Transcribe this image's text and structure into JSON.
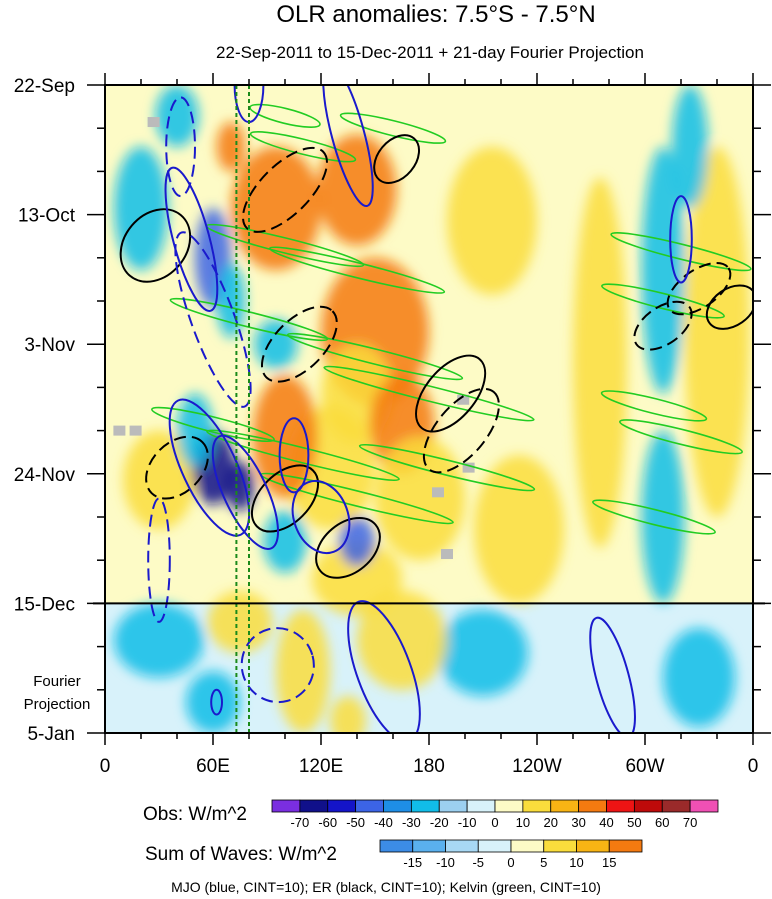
{
  "chart_data": {
    "type": "heatmap",
    "title": "OLR anomalies: 7.5°S - 7.5°N",
    "subtitle": "22-Sep-2011 to 15-Dec-2011 + 21-day Fourier Projection",
    "x_axis": {
      "ticks": [
        {
          "lon": 0,
          "label": "0"
        },
        {
          "lon": 60,
          "label": "60E"
        },
        {
          "lon": 120,
          "label": "120E"
        },
        {
          "lon": 180,
          "label": "180"
        },
        {
          "lon": 240,
          "label": "120W"
        },
        {
          "lon": 300,
          "label": "60W"
        },
        {
          "lon": 360,
          "label": "0"
        }
      ],
      "range": [
        0,
        360
      ]
    },
    "y_axis": {
      "ticks": [
        {
          "day": 0,
          "label": "22-Sep"
        },
        {
          "day": 21,
          "label": "13-Oct"
        },
        {
          "day": 42,
          "label": "3-Nov"
        },
        {
          "day": 63,
          "label": "24-Nov"
        },
        {
          "day": 84,
          "label": "15-Dec"
        },
        {
          "day": 105,
          "label": "5-Jan"
        }
      ],
      "range": [
        0,
        105
      ],
      "reversed": true
    },
    "observation_end_day": 84,
    "projection_label": [
      "Fourier",
      "Projection"
    ],
    "reference_lons": [
      73,
      80
    ],
    "obs_colorbar": {
      "label": "Obs: W/m^2",
      "levels": [
        -70,
        -60,
        -50,
        -40,
        -30,
        -20,
        -10,
        0,
        10,
        20,
        30,
        40,
        50,
        60,
        70
      ],
      "colors": [
        "#7a2ee0",
        "#10108a",
        "#1414c8",
        "#3c64e6",
        "#1e8ee6",
        "#11bde8",
        "#9cd0f0",
        "#d8f2fa",
        "#fdfbc6",
        "#fadd3c",
        "#f8b414",
        "#f47a10",
        "#ee1414",
        "#be0a0a",
        "#9a2a2a",
        "#f050b4"
      ]
    },
    "wave_colorbar": {
      "label": "Sum of Waves: W/m^2",
      "levels": [
        -15,
        -10,
        -5,
        0,
        5,
        10,
        15
      ],
      "colors": [
        "#3c8ce6",
        "#5ab0ee",
        "#a8d8f4",
        "#d8f2fa",
        "#fdfbc6",
        "#fadd3c",
        "#f8b414",
        "#f47a10"
      ]
    },
    "caption": "MJO (blue, CINT=10); ER (black, CINT=10); Kelvin (green, CINT=10)",
    "field_blobs": [
      {
        "lon": 70,
        "day": 10,
        "rlon": 8,
        "rday": 4,
        "v": 2
      },
      {
        "lon": 95,
        "day": 20,
        "rlon": 25,
        "rday": 10,
        "v": 2
      },
      {
        "lon": 140,
        "day": 17,
        "rlon": 22,
        "rday": 9,
        "v": 2
      },
      {
        "lon": 150,
        "day": 40,
        "rlon": 30,
        "rday": 12,
        "v": 2
      },
      {
        "lon": 140,
        "day": 50,
        "rlon": 20,
        "rday": 8,
        "v": 1
      },
      {
        "lon": 165,
        "day": 55,
        "rlon": 18,
        "rday": 8,
        "v": 2
      },
      {
        "lon": 125,
        "day": 62,
        "rlon": 25,
        "rday": 10,
        "v": 1
      },
      {
        "lon": 100,
        "day": 57,
        "rlon": 18,
        "rday": 10,
        "v": 2
      },
      {
        "lon": 175,
        "day": 67,
        "rlon": 25,
        "rday": 10,
        "v": 1
      },
      {
        "lon": 30,
        "day": 64,
        "rlon": 20,
        "rday": 8,
        "v": 1
      },
      {
        "lon": 140,
        "day": 80,
        "rlon": 25,
        "rday": 6,
        "v": 1
      },
      {
        "lon": 215,
        "day": 22,
        "rlon": 25,
        "rday": 12,
        "v": 1
      },
      {
        "lon": 230,
        "day": 72,
        "rlon": 25,
        "rday": 12,
        "v": 1
      },
      {
        "lon": 275,
        "day": 45,
        "rlon": 15,
        "rday": 30,
        "v": 1
      },
      {
        "lon": 340,
        "day": 40,
        "rlon": 18,
        "rday": 30,
        "v": 1
      },
      {
        "lon": 60,
        "day": 28,
        "rlon": 10,
        "rday": 8,
        "v": -2
      },
      {
        "lon": 70,
        "day": 35,
        "rlon": 8,
        "rday": 6,
        "v": -1
      },
      {
        "lon": 60,
        "day": 62,
        "rlon": 12,
        "rday": 6,
        "v": -3
      },
      {
        "lon": 75,
        "day": 65,
        "rlon": 8,
        "rday": 4,
        "v": -3
      },
      {
        "lon": 50,
        "day": 56,
        "rlon": 10,
        "rday": 6,
        "v": -1
      },
      {
        "lon": 95,
        "day": 42,
        "rlon": 12,
        "rday": 4,
        "v": -1
      },
      {
        "lon": 140,
        "day": 74,
        "rlon": 10,
        "rday": 4,
        "v": -2
      },
      {
        "lon": 100,
        "day": 74,
        "rlon": 12,
        "rday": 5,
        "v": -1
      },
      {
        "lon": 20,
        "day": 20,
        "rlon": 15,
        "rday": 10,
        "v": -1
      },
      {
        "lon": 40,
        "day": 5,
        "rlon": 12,
        "rday": 5,
        "v": -1
      },
      {
        "lon": 310,
        "day": 30,
        "rlon": 12,
        "rday": 20,
        "v": -1
      },
      {
        "lon": 325,
        "day": 10,
        "rlon": 10,
        "rday": 10,
        "v": -1
      },
      {
        "lon": 310,
        "day": 70,
        "rlon": 12,
        "rday": 14,
        "v": -1
      },
      {
        "lon": 30,
        "day": 90,
        "rlon": 25,
        "rday": 6,
        "v": -1
      },
      {
        "lon": 60,
        "day": 100,
        "rlon": 15,
        "rday": 5,
        "v": -1
      },
      {
        "lon": 210,
        "day": 92,
        "rlon": 25,
        "rday": 7,
        "v": -1
      },
      {
        "lon": 330,
        "day": 96,
        "rlon": 20,
        "rday": 8,
        "v": -1
      },
      {
        "lon": 75,
        "day": 87,
        "rlon": 18,
        "rday": 5,
        "v": 1
      },
      {
        "lon": 110,
        "day": 95,
        "rlon": 15,
        "rday": 10,
        "v": 1
      },
      {
        "lon": 165,
        "day": 90,
        "rlon": 25,
        "rday": 8,
        "v": 1
      },
      {
        "lon": 135,
        "day": 103,
        "rlon": 10,
        "rday": 4,
        "v": 1
      }
    ],
    "mjo_contours": [
      {
        "lon": 48,
        "day": 25,
        "rlon": 10,
        "rday": 12,
        "rot": -15,
        "dash": false
      },
      {
        "lon": 60,
        "day": 38,
        "rlon": 12,
        "rday": 15,
        "rot": -20,
        "dash": true
      },
      {
        "lon": 58,
        "day": 62,
        "rlon": 15,
        "rday": 12,
        "rot": -25,
        "dash": false
      },
      {
        "lon": 78,
        "day": 66,
        "rlon": 12,
        "rday": 10,
        "rot": -25,
        "dash": false
      },
      {
        "lon": 120,
        "day": 70,
        "rlon": 15,
        "rday": 6,
        "rot": -20,
        "dash": false
      },
      {
        "lon": 135,
        "day": 8,
        "rlon": 9,
        "rday": 12,
        "rot": -15,
        "dash": false
      },
      {
        "lon": 80,
        "day": 0,
        "rlon": 8,
        "rday": 6,
        "rot": 0,
        "dash": false
      },
      {
        "lon": 42,
        "day": 10,
        "rlon": 8,
        "rday": 8,
        "rot": 0,
        "dash": true
      },
      {
        "lon": 155,
        "day": 95,
        "rlon": 15,
        "rday": 12,
        "rot": -20,
        "dash": false
      },
      {
        "lon": 282,
        "day": 96,
        "rlon": 9,
        "rday": 10,
        "rot": -15,
        "dash": false
      },
      {
        "lon": 320,
        "day": 25,
        "rlon": 6,
        "rday": 7,
        "rot": 0,
        "dash": false
      },
      {
        "lon": 30,
        "day": 77,
        "rlon": 6,
        "rday": 10,
        "rot": 0,
        "dash": true
      },
      {
        "lon": 96,
        "day": 94,
        "rlon": 20,
        "rday": 6,
        "rot": -15,
        "dash": true
      },
      {
        "lon": 62,
        "day": 100,
        "rlon": 3,
        "rday": 2,
        "rot": 0,
        "dash": false
      },
      {
        "lon": 105,
        "day": 60,
        "rlon": 8,
        "rday": 6,
        "rot": 0,
        "dash": false
      }
    ],
    "er_contours": [
      {
        "lon": 28,
        "day": 26,
        "rlon": 22,
        "rday": 5,
        "rot": -50,
        "dash": false
      },
      {
        "lon": 100,
        "day": 17,
        "rlon": 30,
        "rday": 4,
        "rot": -45,
        "dash": true
      },
      {
        "lon": 108,
        "day": 42,
        "rlon": 26,
        "rday": 4,
        "rot": -45,
        "dash": true
      },
      {
        "lon": 192,
        "day": 50,
        "rlon": 25,
        "rday": 4,
        "rot": -50,
        "dash": false
      },
      {
        "lon": 198,
        "day": 56,
        "rlon": 28,
        "rday": 4,
        "rot": -50,
        "dash": true
      },
      {
        "lon": 40,
        "day": 62,
        "rlon": 20,
        "rday": 4,
        "rot": -45,
        "dash": true
      },
      {
        "lon": 100,
        "day": 67,
        "rlon": 22,
        "rday": 4,
        "rot": -45,
        "dash": false
      },
      {
        "lon": 135,
        "day": 75,
        "rlon": 20,
        "rday": 4,
        "rot": -40,
        "dash": false
      },
      {
        "lon": 162,
        "day": 12,
        "rlon": 15,
        "rday": 3,
        "rot": -50,
        "dash": false
      },
      {
        "lon": 330,
        "day": 33,
        "rlon": 20,
        "rday": 3,
        "rot": -35,
        "dash": true
      },
      {
        "lon": 348,
        "day": 36,
        "rlon": 15,
        "rday": 3,
        "rot": -35,
        "dash": false
      },
      {
        "lon": 310,
        "day": 39,
        "rlon": 18,
        "rday": 3,
        "rot": -35,
        "dash": true
      }
    ],
    "kelvin_contours": [
      {
        "lon": 110,
        "day": 10,
        "len": 60
      },
      {
        "lon": 160,
        "day": 7,
        "len": 60
      },
      {
        "lon": 100,
        "day": 26,
        "len": 90
      },
      {
        "lon": 140,
        "day": 30,
        "len": 100
      },
      {
        "lon": 80,
        "day": 38,
        "len": 90
      },
      {
        "lon": 150,
        "day": 44,
        "len": 100
      },
      {
        "lon": 180,
        "day": 50,
        "len": 120
      },
      {
        "lon": 110,
        "day": 60,
        "len": 110
      },
      {
        "lon": 140,
        "day": 67,
        "len": 110
      },
      {
        "lon": 190,
        "day": 62,
        "len": 100
      },
      {
        "lon": 60,
        "day": 55,
        "len": 70
      },
      {
        "lon": 320,
        "day": 27,
        "len": 80
      },
      {
        "lon": 310,
        "day": 35,
        "len": 70
      },
      {
        "lon": 305,
        "day": 52,
        "len": 60
      },
      {
        "lon": 320,
        "day": 57,
        "len": 70
      },
      {
        "lon": 305,
        "day": 70,
        "len": 70
      },
      {
        "lon": 100,
        "day": 5,
        "len": 40
      }
    ],
    "missing_patches": [
      {
        "lon": 8,
        "day": 56
      },
      {
        "lon": 17,
        "day": 56
      },
      {
        "lon": 27,
        "day": 6
      },
      {
        "lon": 199,
        "day": 51
      },
      {
        "lon": 202,
        "day": 62
      },
      {
        "lon": 185,
        "day": 66
      },
      {
        "lon": 190,
        "day": 76
      }
    ]
  }
}
